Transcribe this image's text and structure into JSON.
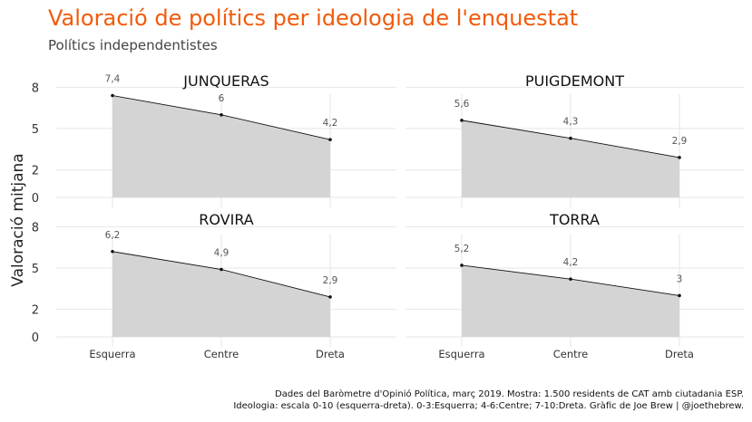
{
  "title": "Valoració de polítics per ideologia de l'enquestat",
  "subtitle": "Polítics independentistes",
  "caption": {
    "line1": "Dades del Baròmetre d'Opinió Política, març 2019. Mostra: 1.500 residents de CAT amb ciutadania ESP.",
    "line2": "Ideologia: escala 0-10 (esquerra-dreta). 0-3:Esquerra; 4-6:Centre; 7-10:Dreta. Gràfic de Joe Brew | @joethebrew."
  },
  "colors": {
    "title": "#f25a0a",
    "area_fill": "#d4d4d4",
    "line": "#111111",
    "grid": "#e6e6e6",
    "label": "#555555"
  },
  "chart_data": {
    "type": "area",
    "ylabel": "Valoració mitjana",
    "xlabel": "",
    "categories": [
      "Esquerra",
      "Centre",
      "Dreta"
    ],
    "yticks": [
      0,
      2,
      5,
      8
    ],
    "ylim": [
      0,
      9
    ],
    "facets": [
      {
        "name": "JUNQUERAS",
        "values": [
          7.4,
          6.0,
          4.2
        ],
        "labels": [
          "7,4",
          "6",
          "4,2"
        ]
      },
      {
        "name": "PUIGDEMONT",
        "values": [
          5.6,
          4.3,
          2.9
        ],
        "labels": [
          "5,6",
          "4,3",
          "2,9"
        ]
      },
      {
        "name": "ROVIRA",
        "values": [
          6.2,
          4.9,
          2.9
        ],
        "labels": [
          "6,2",
          "4,9",
          "2,9"
        ]
      },
      {
        "name": "TORRA",
        "values": [
          5.2,
          4.2,
          3.0
        ],
        "labels": [
          "5,2",
          "4,2",
          "3"
        ]
      }
    ]
  }
}
